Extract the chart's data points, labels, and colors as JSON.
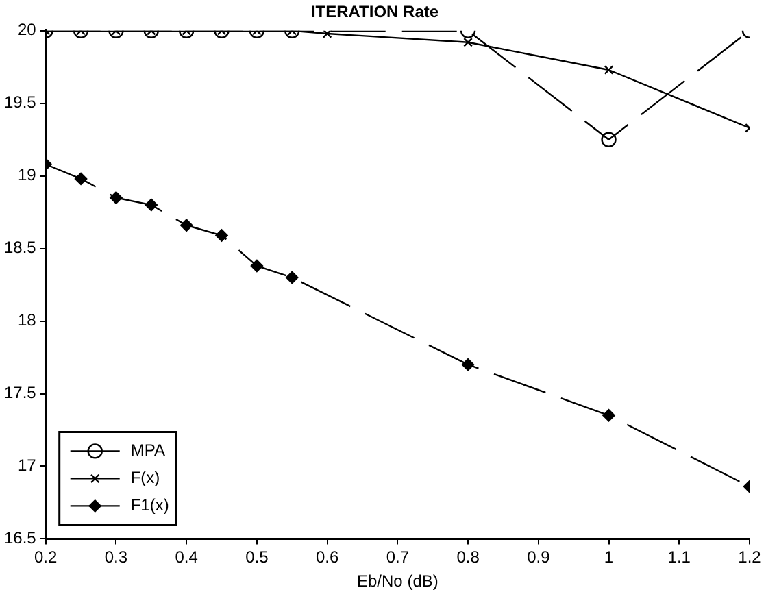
{
  "chart_data": {
    "type": "line",
    "title": "ITERATION Rate",
    "xlabel": "Eb/No (dB)",
    "xlim": [
      0.2,
      1.2
    ],
    "xticks": [
      0.2,
      0.3,
      0.4,
      0.5,
      0.6,
      0.7,
      0.8,
      0.9,
      1,
      1.1,
      1.2
    ],
    "ylim": [
      16.5,
      20
    ],
    "yticks": [
      16.5,
      17,
      17.5,
      18,
      18.5,
      19,
      19.5,
      20
    ],
    "grid": false,
    "legend": "bottom left",
    "series": [
      {
        "name": "MPA",
        "color": "#000000",
        "marker": "circle",
        "line_style": "dashed",
        "x": [
          0.2,
          0.25,
          0.3,
          0.35,
          0.4,
          0.45,
          0.5,
          0.55,
          0.8,
          1,
          1.2
        ],
        "values": [
          20,
          20,
          20,
          20,
          20,
          20,
          20,
          20,
          20,
          19.25,
          20
        ]
      },
      {
        "name": "F(x)",
        "color": "#000000",
        "marker": "cross",
        "line_style": "solid",
        "x": [
          0.2,
          0.25,
          0.3,
          0.35,
          0.4,
          0.45,
          0.5,
          0.55,
          0.6,
          0.8,
          1,
          1.2
        ],
        "values": [
          20,
          20,
          20,
          20,
          20,
          20,
          20,
          20,
          19.98,
          19.92,
          19.73,
          19.33
        ]
      },
      {
        "name": "F1(x)",
        "color": "#000000",
        "marker": "diamond",
        "line_style": "dashed",
        "x": [
          0.2,
          0.25,
          0.3,
          0.35,
          0.4,
          0.45,
          0.5,
          0.55,
          0.8,
          1,
          1.2
        ],
        "values": [
          19.08,
          18.98,
          18.85,
          18.8,
          18.66,
          18.59,
          18.38,
          18.3,
          17.7,
          17.35,
          16.86
        ]
      }
    ]
  }
}
